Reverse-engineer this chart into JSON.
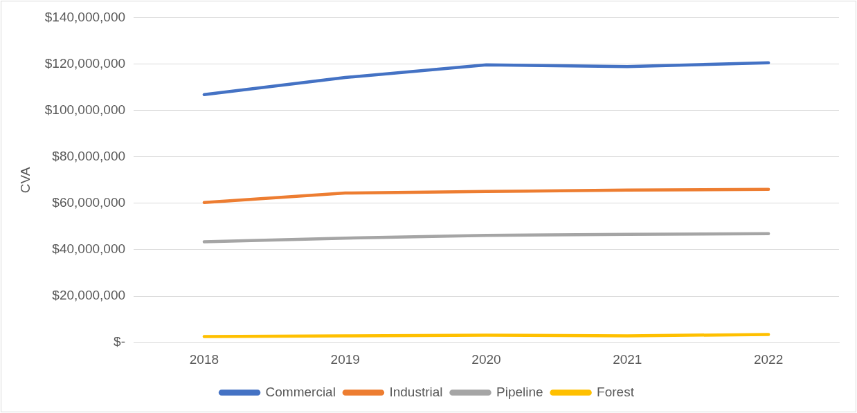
{
  "chart_data": {
    "type": "line",
    "ylabel": "CVA",
    "categories": [
      "2018",
      "2019",
      "2020",
      "2021",
      "2022"
    ],
    "series": [
      {
        "name": "Commercial",
        "color": "#4472c4",
        "values": [
          106800000,
          114200000,
          119600000,
          118900000,
          120500000
        ]
      },
      {
        "name": "Industrial",
        "color": "#ed7d31",
        "values": [
          60300000,
          64400000,
          65100000,
          65700000,
          66000000
        ]
      },
      {
        "name": "Pipeline",
        "color": "#a5a5a5",
        "values": [
          43400000,
          45000000,
          46200000,
          46600000,
          46900000
        ]
      },
      {
        "name": "Forest",
        "color": "#ffc000",
        "values": [
          2600000,
          2900000,
          3200000,
          2900000,
          3500000
        ]
      }
    ],
    "ylim": [
      0,
      140000000
    ],
    "yticks": [
      {
        "value": 0,
        "label": "$-"
      },
      {
        "value": 20000000,
        "label": "$20,000,000"
      },
      {
        "value": 40000000,
        "label": "$40,000,000"
      },
      {
        "value": 60000000,
        "label": "$60,000,000"
      },
      {
        "value": 80000000,
        "label": "$80,000,000"
      },
      {
        "value": 100000000,
        "label": "$100,000,000"
      },
      {
        "value": 120000000,
        "label": "$120,000,000"
      },
      {
        "value": 140000000,
        "label": "$140,000,000"
      }
    ],
    "grid": "y",
    "legend": "bottom",
    "marker": "none",
    "line_style": "solid"
  }
}
